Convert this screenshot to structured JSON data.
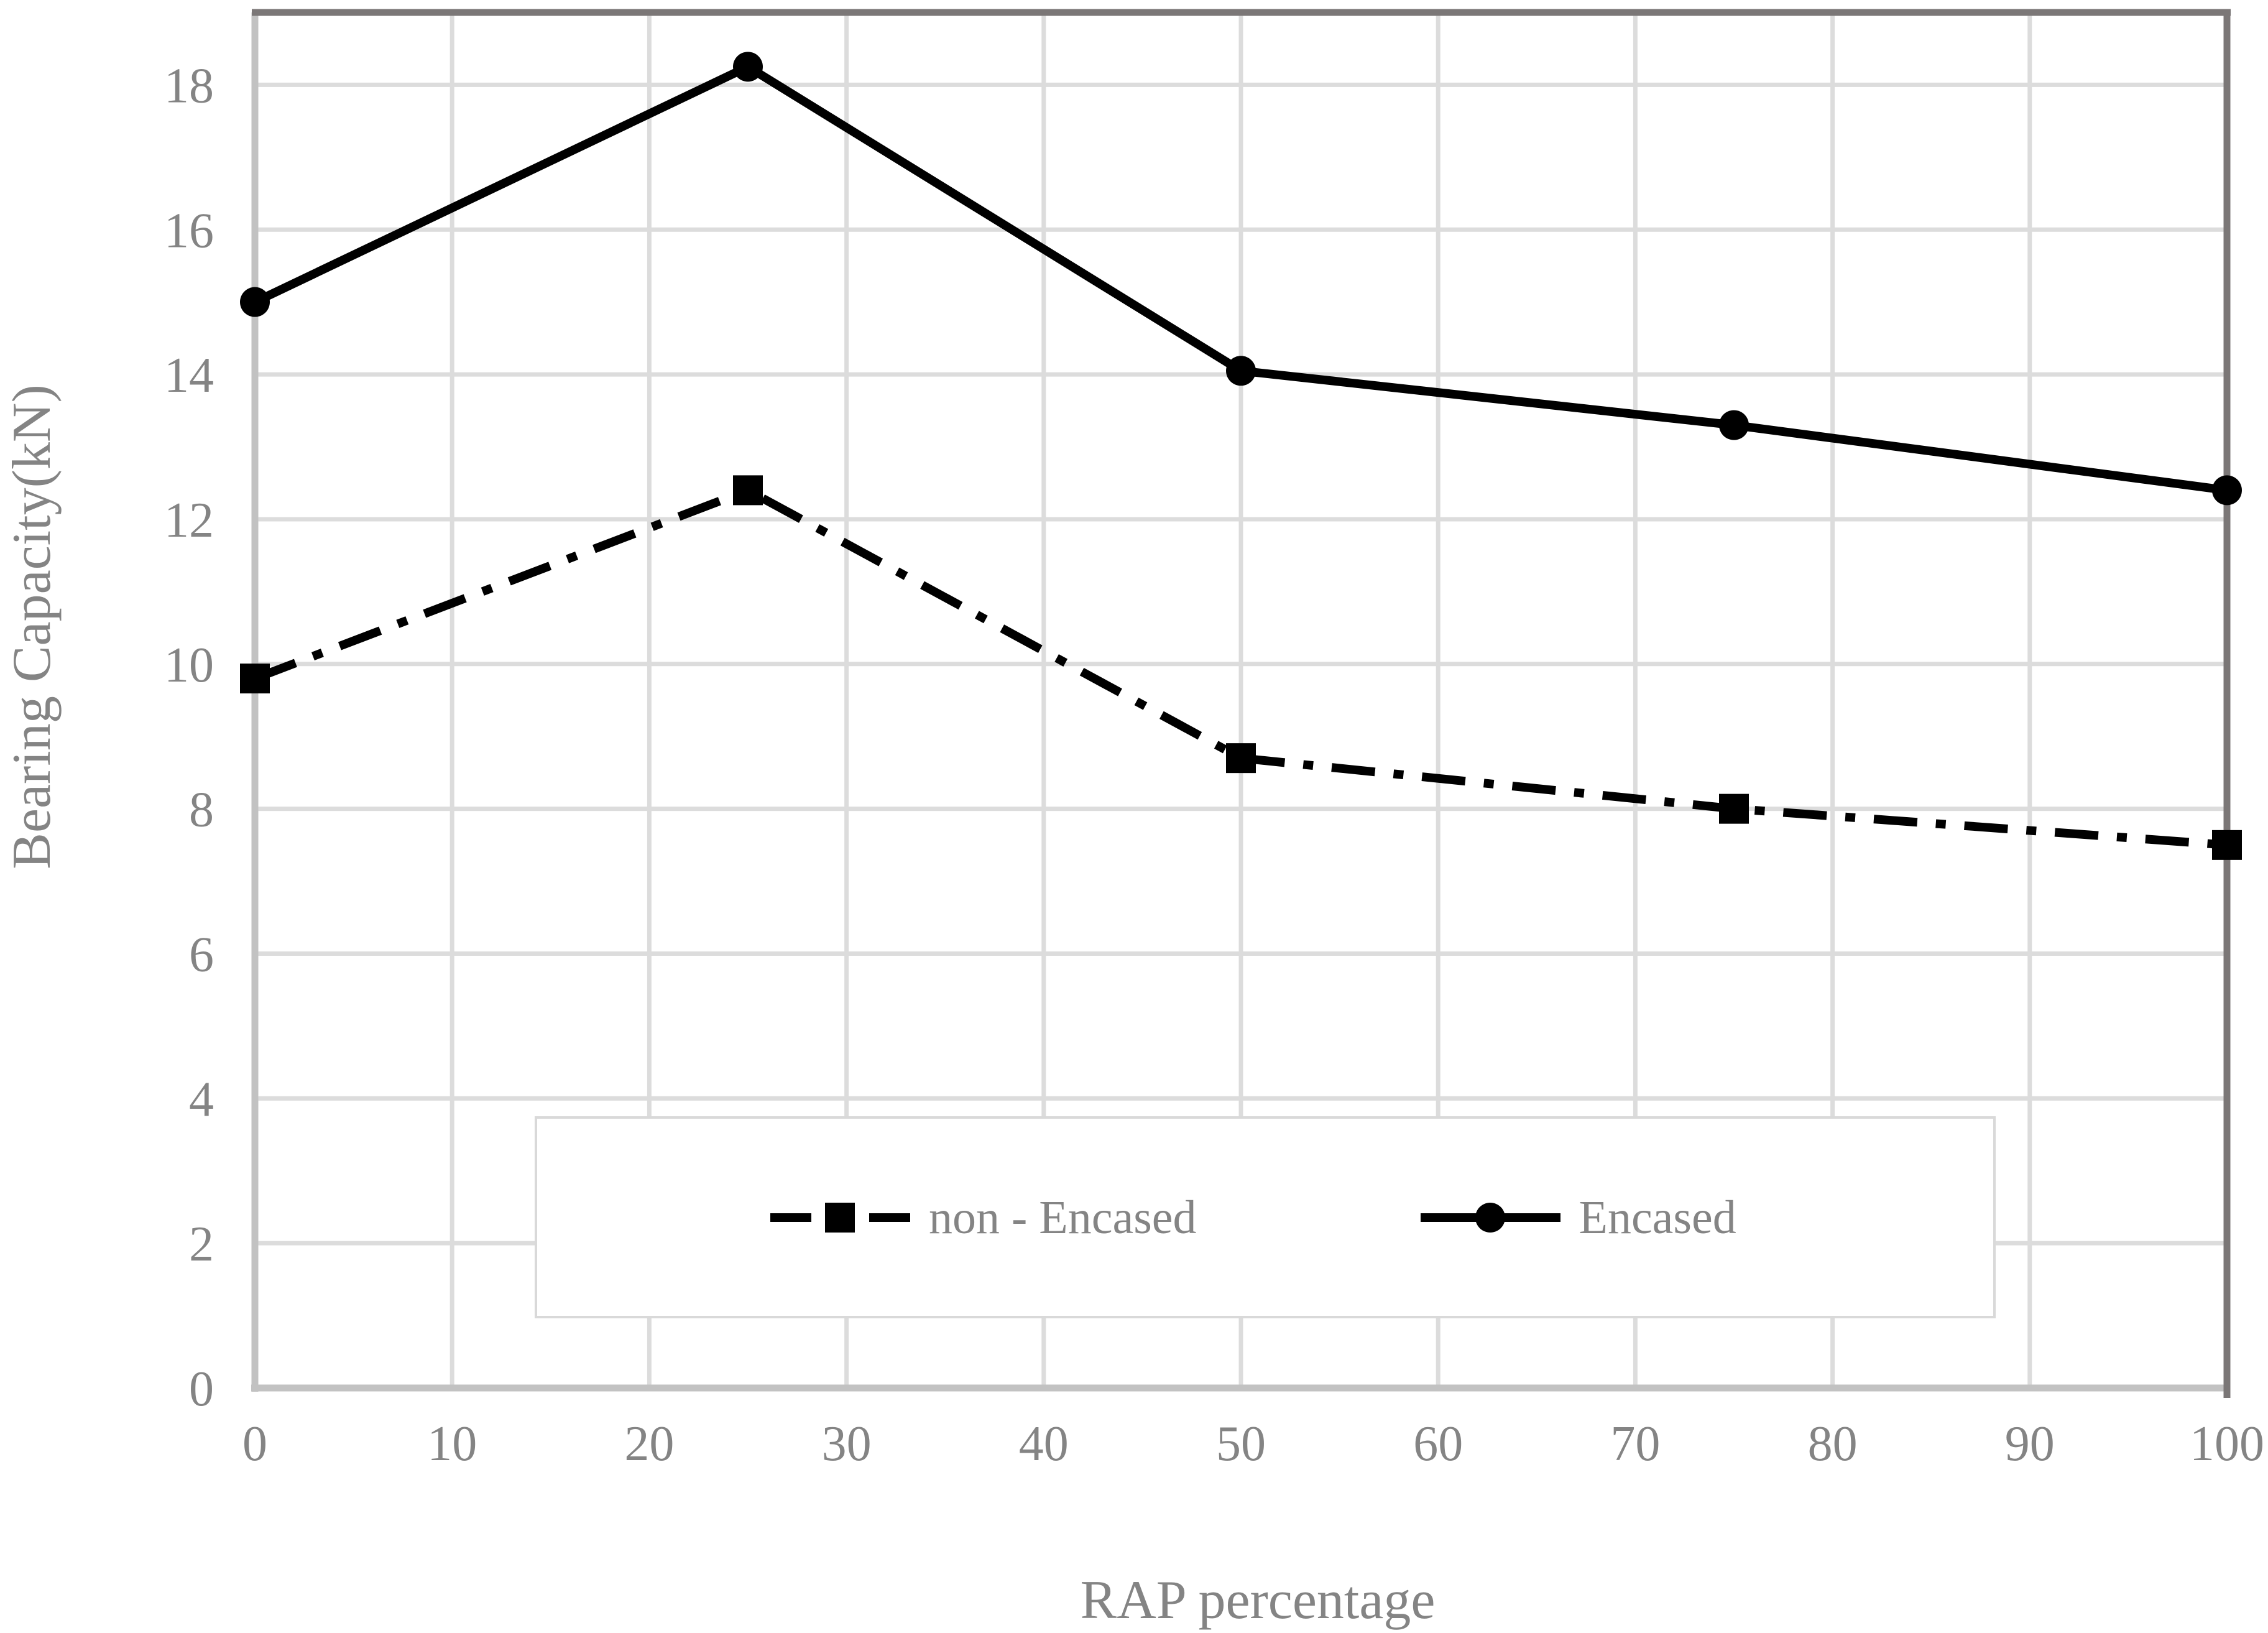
{
  "figure": {
    "background": "#ffffff"
  },
  "chart_data": {
    "type": "line",
    "title": "",
    "xlabel": "RAP percentage",
    "ylabel": "Bearing Capacity(kN)",
    "x": [
      0,
      25,
      50,
      75,
      100
    ],
    "xlim": [
      0,
      100
    ],
    "ylim": [
      0,
      19
    ],
    "x_ticks": [
      0,
      10,
      20,
      30,
      40,
      50,
      60,
      70,
      80,
      90,
      100
    ],
    "y_ticks": [
      0,
      2,
      4,
      6,
      8,
      10,
      12,
      14,
      16,
      18
    ],
    "grid": true,
    "legend_position": "inside-bottom-center",
    "series": [
      {
        "name": "non - Encased",
        "values": [
          9.8,
          12.4,
          8.7,
          8.0,
          7.5
        ],
        "color": "#000000",
        "marker": "square",
        "line_style": "dash-dot"
      },
      {
        "name": "Encased",
        "values": [
          15.0,
          18.25,
          14.05,
          13.3,
          12.4
        ],
        "color": "#000000",
        "marker": "circle",
        "line_style": "solid"
      }
    ],
    "colors": {
      "gridline": "#dcdcdc",
      "axis_line": "#c2c2c2",
      "plot_border": "#7b7777",
      "text": "#848484",
      "legend_border": "#d9d9d9",
      "background": "#ffffff"
    }
  }
}
